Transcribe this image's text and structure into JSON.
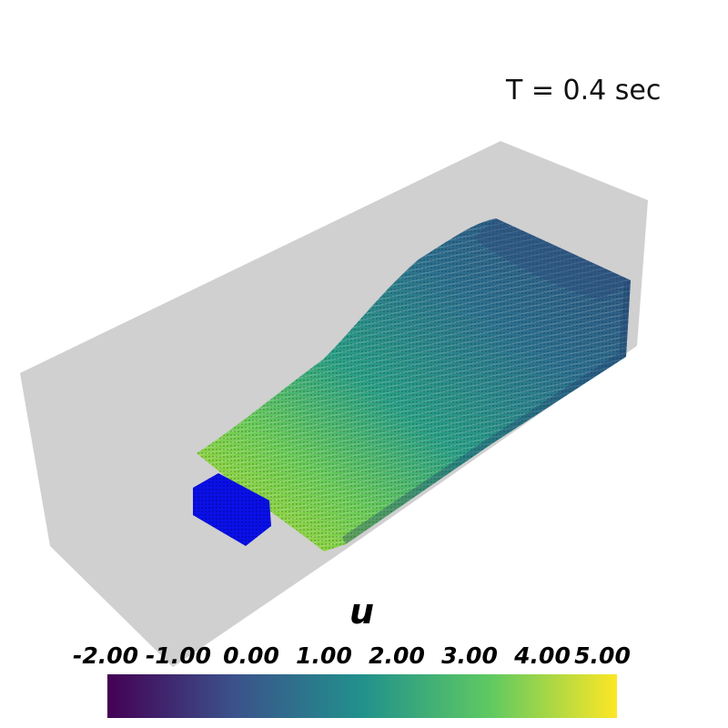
{
  "scene": {
    "time_label": "T = 0.4 sec",
    "container_color": "#d0d0d0",
    "obstacle_color": "#0a10e6",
    "background_color": "#ffffff"
  },
  "colorbar": {
    "title": "u",
    "ticks": [
      "-2.00",
      "-1.00",
      "0.00",
      "1.00",
      "2.00",
      "3.00",
      "4.00",
      "5.00"
    ],
    "range": [
      -2.0,
      5.0
    ],
    "colormap": "viridis",
    "stops": [
      "#440154",
      "#3b528b",
      "#21918c",
      "#5ec962",
      "#fde725"
    ]
  }
}
